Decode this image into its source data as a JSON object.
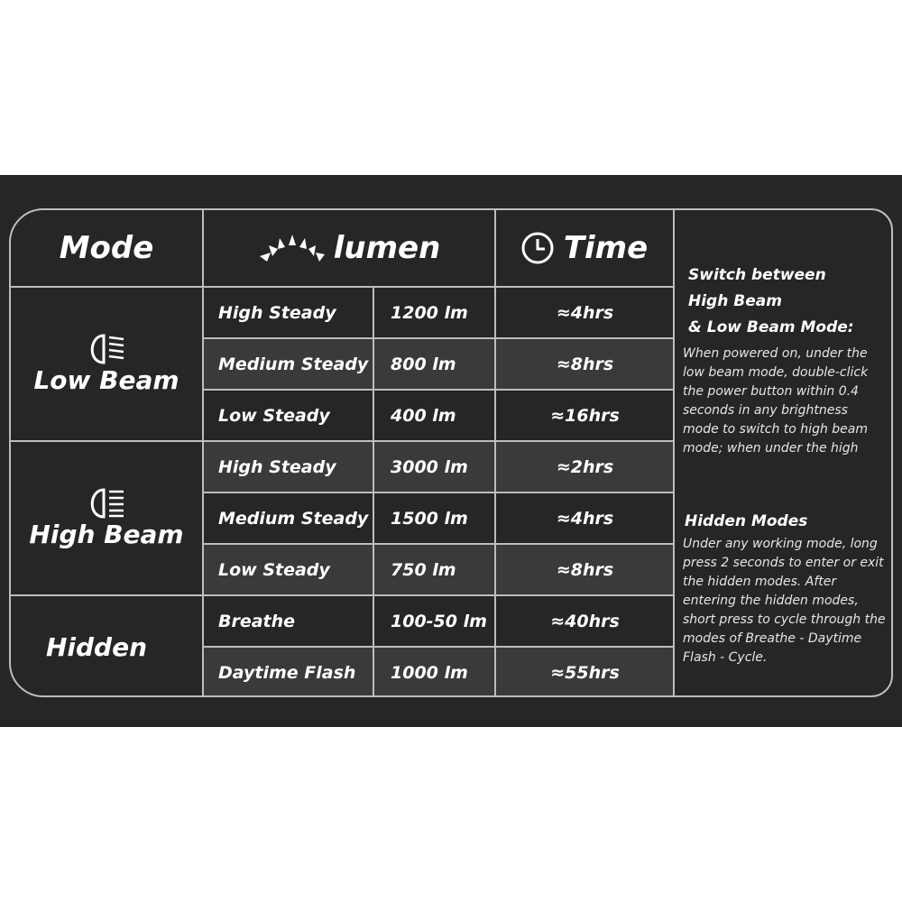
{
  "header": {
    "mode": "Mode",
    "lumen": "lumen",
    "time": "Time",
    "sun_icon": "sunrise-icon",
    "clock_icon": "clock-icon"
  },
  "groups": [
    {
      "label": "Low Beam",
      "icon": "low-beam-headlight-icon"
    },
    {
      "label": "High Beam",
      "icon": "high-beam-headlight-icon"
    },
    {
      "label": "Hidden"
    }
  ],
  "rows": [
    {
      "name": "High Steady",
      "lumen": "1200 lm",
      "time": "≈4hrs"
    },
    {
      "name": "Medium Steady",
      "lumen": "800 lm",
      "time": "≈8hrs"
    },
    {
      "name": "Low Steady",
      "lumen": "400 lm",
      "time": "≈16hrs"
    },
    {
      "name": "High Steady",
      "lumen": "3000 lm",
      "time": "≈2hrs"
    },
    {
      "name": "Medium Steady",
      "lumen": "1500 lm",
      "time": "≈4hrs"
    },
    {
      "name": "Low Steady",
      "lumen": "750 lm",
      "time": "≈8hrs"
    },
    {
      "name": "Breathe",
      "lumen": "100-50 lm",
      "time": "≈40hrs"
    },
    {
      "name": "Daytime Flash",
      "lumen": "1000 lm",
      "time": "≈55hrs"
    }
  ],
  "notes": {
    "switch_title_1": "Switch between",
    "switch_title_2": "High Beam",
    "switch_title_3": "& Low Beam Mode:",
    "switch_body": "When powered on, under the low beam mode, double-click the power button within 0.4 seconds in any brightness mode to switch to high beam mode; when under the high",
    "hidden_title": "Hidden Modes",
    "hidden_body": "Under any working mode, long press 2 seconds to enter or exit the hidden modes. After entering the hidden modes, short press to cycle through the modes of Breathe - Daytime Flash - Cycle."
  },
  "colors": {
    "background": "#262626",
    "shaded_row": "#3a3a3a",
    "lines": "#bdbdbd",
    "text": "#ffffff"
  }
}
